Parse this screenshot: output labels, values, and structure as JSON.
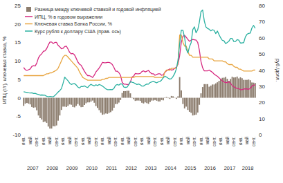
{
  "chart_data": {
    "type": "line",
    "y_label": "ИПЦ (г/г), ключевая ставка, %",
    "y2_label": "руб./долл.",
    "categories": [
      "янв.",
      null,
      null,
      null,
      "май",
      null,
      null,
      null,
      "сент.",
      null,
      null,
      null,
      "янв.",
      null,
      null,
      null,
      "май",
      null,
      null,
      null,
      "сент.",
      null,
      null,
      null,
      "янв.",
      null,
      null,
      null,
      "май",
      null,
      null,
      null,
      "сент.",
      null,
      null,
      null,
      "янв.",
      null,
      null,
      null,
      "май",
      null,
      null,
      null,
      "сент.",
      null,
      null,
      null,
      "янв.",
      null,
      null,
      null,
      "май",
      null,
      null,
      null,
      "сент.",
      null,
      null,
      null,
      "янв.",
      null,
      null,
      null,
      "май",
      null,
      null,
      null,
      "сент.",
      null,
      null,
      null,
      "янв.",
      null,
      null,
      null,
      "май",
      null,
      null,
      null,
      "сент.",
      null,
      null,
      null,
      "янв.",
      null,
      null,
      null,
      "май",
      null,
      null,
      null,
      "сент.",
      null,
      null,
      null,
      "янв.",
      null,
      null,
      null,
      "май",
      null,
      null,
      null,
      "сент.",
      null,
      null,
      null,
      "янв.",
      null,
      null,
      null,
      "май",
      null,
      null,
      null,
      "сент.",
      null,
      null,
      null,
      "янв.",
      null,
      null,
      null,
      "май",
      null,
      null,
      null,
      "сент.",
      null,
      null,
      null,
      "янв.",
      null,
      null,
      null,
      "май",
      null,
      null,
      null,
      "сент.",
      null
    ],
    "x_group_labels": [
      "2007",
      "2008",
      "2009",
      "2010",
      "2011",
      "2012",
      "2013",
      "2014",
      "2015",
      "2016",
      "2017",
      "2018"
    ],
    "ylim": [
      -10,
      25
    ],
    "yticks": [
      -10,
      -5,
      0,
      5,
      10,
      15,
      20,
      25
    ],
    "y2lim": [
      0,
      80
    ],
    "y2ticks": [
      0,
      10,
      20,
      30,
      40,
      50,
      60,
      70,
      80
    ],
    "grid": false,
    "legend": "upper left",
    "series": [
      {
        "name": "Разница между ключевой ставкой и годовой инфляцией",
        "type": "bar",
        "color": "#8c7d6e",
        "values": [
          -2.2,
          -1.6,
          -1.4,
          -1.6,
          -1.8,
          -2.5,
          -2.7,
          -2.6,
          -3.4,
          -4.8,
          -5.5,
          -5.9,
          -6.6,
          -6.45,
          -6.8,
          -7.8,
          -8.35,
          -8.35,
          -7.7,
          -7.75,
          -7.5,
          -6.2,
          -4.8,
          -3.3,
          -2.4,
          -2.4,
          -2.5,
          -2.2,
          -1.8,
          -1.9,
          -2.5,
          -2.6,
          -2.2,
          -1.7,
          -2.1,
          -2.55,
          -2.5,
          -1.95,
          -1.5,
          -1.25,
          -1.25,
          -1.05,
          -0.75,
          -1.35,
          -2.25,
          -2.75,
          -3.35,
          -4.05,
          -4.6,
          -4.5,
          -4.25,
          -4.35,
          -4.1,
          -3.9,
          -3.5,
          -2.7,
          -1.7,
          -1.7,
          -1.3,
          -0.6,
          1.3,
          1.8,
          1.8,
          1.9,
          1.9,
          1.2,
          -0.1,
          -0.4,
          -0.85,
          -0.75,
          -0.75,
          -0.85,
          -1.35,
          -1.55,
          -1.25,
          -1.45,
          -1.65,
          -1.15,
          -0.75,
          -0.75,
          -0.6,
          -0.8,
          -1.0,
          -1.0,
          -0.6,
          -0.7,
          0.1,
          0.2,
          -0.1,
          -0.3,
          0.5,
          0.4,
          0,
          -0.3,
          0.4,
          5.6,
          2.0,
          -1.7,
          -2.9,
          -2.4,
          -3.3,
          -3.8,
          -4.1,
          -4.8,
          -4.7,
          -4.6,
          -4.0,
          -1.9,
          1.2,
          2.9,
          3.7,
          3.7,
          3.7,
          3.0,
          3.3,
          3.6,
          3.6,
          3.9,
          4.2,
          4.6,
          5.0,
          5.4,
          5.45,
          5.65,
          5.15,
          4.6,
          5.1,
          5.7,
          5.5,
          5.55,
          5.75,
          5.25,
          5.55,
          5.3,
          4.85,
          4.85,
          4.85,
          4.95,
          4.75,
          4.15,
          4.1,
          4.0
        ]
      },
      {
        "name": "ИПЦ, % в годовом выражении",
        "type": "line",
        "color": "#d6287f",
        "values": [
          8.2,
          7.6,
          7.4,
          7.6,
          7.8,
          8.5,
          8.7,
          8.6,
          9.4,
          10.8,
          11.5,
          11.9,
          12.6,
          12.7,
          13.3,
          14.3,
          15.1,
          15.1,
          14.7,
          15.0,
          15.0,
          14.2,
          13.8,
          13.3,
          13.4,
          13.9,
          14.0,
          13.2,
          12.3,
          11.9,
          12.0,
          11.6,
          10.7,
          9.7,
          9.1,
          8.8,
          8.0,
          7.2,
          6.5,
          6.0,
          6.0,
          5.8,
          5.5,
          6.1,
          7.0,
          7.5,
          8.1,
          8.8,
          9.6,
          9.5,
          9.5,
          9.6,
          9.6,
          9.4,
          9.0,
          8.2,
          7.2,
          7.2,
          6.8,
          6.1,
          4.2,
          3.7,
          3.7,
          3.6,
          3.6,
          4.3,
          5.6,
          5.9,
          6.6,
          6.5,
          6.5,
          6.6,
          7.1,
          7.3,
          7.0,
          7.2,
          7.4,
          6.9,
          6.5,
          6.5,
          6.1,
          6.3,
          6.5,
          6.5,
          6.1,
          6.2,
          6.9,
          7.3,
          7.6,
          7.8,
          7.5,
          7.6,
          8.0,
          8.3,
          9.1,
          11.4,
          15.0,
          16.7,
          16.9,
          16.4,
          15.8,
          15.3,
          15.6,
          15.8,
          15.7,
          15.6,
          15.0,
          12.9,
          9.8,
          8.1,
          7.3,
          7.3,
          7.3,
          7.5,
          7.2,
          6.9,
          6.4,
          6.1,
          5.8,
          5.4,
          5.0,
          4.6,
          4.3,
          4.1,
          4.1,
          4.4,
          3.9,
          3.3,
          3.0,
          2.7,
          2.5,
          2.5,
          2.2,
          2.2,
          2.4,
          2.4,
          2.4,
          2.3,
          2.5,
          3.1,
          3.4,
          3.5
        ]
      },
      {
        "name": "Ключевая ставка Банка России, %",
        "type": "line",
        "color": "#e8a540",
        "values": [
          6.0,
          6.0,
          6.0,
          6.0,
          6.0,
          6.0,
          6.0,
          6.0,
          6.0,
          6.0,
          6.0,
          6.0,
          6.0,
          6.25,
          6.5,
          6.5,
          6.75,
          6.75,
          7.0,
          7.25,
          7.5,
          8.0,
          9.0,
          10.0,
          11.0,
          11.5,
          11.5,
          11.0,
          10.5,
          10.0,
          9.5,
          9.0,
          8.5,
          8.0,
          7.0,
          6.25,
          5.5,
          5.25,
          5.0,
          4.75,
          4.75,
          4.75,
          4.75,
          4.75,
          4.75,
          4.75,
          4.75,
          4.75,
          5.0,
          5.0,
          5.25,
          5.25,
          5.5,
          5.5,
          5.5,
          5.5,
          5.5,
          5.5,
          5.5,
          5.5,
          5.5,
          5.5,
          5.5,
          5.5,
          5.5,
          5.5,
          5.5,
          5.5,
          5.75,
          5.75,
          5.75,
          5.75,
          5.75,
          5.75,
          5.75,
          5.75,
          5.75,
          5.75,
          5.75,
          5.75,
          5.5,
          5.5,
          5.5,
          5.5,
          5.5,
          5.5,
          7.0,
          7.5,
          7.5,
          7.5,
          8.0,
          8.0,
          8.0,
          8.0,
          9.5,
          17.0,
          17.0,
          15.0,
          14.0,
          14.0,
          12.5,
          11.5,
          11.5,
          11.0,
          11.0,
          11.0,
          11.0,
          11.0,
          11.0,
          11.0,
          11.0,
          11.0,
          11.0,
          10.5,
          10.5,
          10.5,
          10.0,
          10.0,
          10.0,
          10.0,
          10.0,
          10.0,
          9.75,
          9.75,
          9.25,
          9.0,
          9.0,
          9.0,
          8.5,
          8.25,
          8.25,
          7.75,
          7.75,
          7.5,
          7.25,
          7.25,
          7.25,
          7.25,
          7.25,
          7.25,
          7.5,
          7.5
        ]
      },
      {
        "name": "Курс рубля к доллару США (прав. ось)",
        "type": "line",
        "axis": "y2",
        "color": "#2ab0a0",
        "values": [
          26.6,
          26.4,
          26.1,
          25.9,
          25.8,
          25.9,
          25.5,
          25.6,
          25.2,
          24.9,
          24.5,
          24.6,
          24.5,
          24.4,
          23.8,
          23.5,
          23.7,
          23.6,
          23.4,
          24.3,
          25.3,
          26.4,
          27.3,
          28.5,
          31.8,
          35.6,
          34.5,
          33.4,
          31.9,
          31.1,
          31.5,
          31.6,
          30.8,
          29.5,
          28.9,
          29.9,
          29.8,
          30.2,
          29.6,
          29.2,
          30.4,
          31.2,
          30.6,
          30.2,
          30.9,
          30.4,
          31.1,
          30.7,
          30.1,
          29.3,
          28.4,
          27.9,
          27.9,
          28.0,
          27.9,
          28.7,
          30.6,
          31.1,
          30.7,
          31.5,
          31.4,
          29.5,
          29.3,
          29.5,
          31.0,
          32.9,
          32.5,
          32.2,
          31.6,
          31.1,
          31.4,
          30.9,
          30.1,
          30.1,
          30.8,
          31.4,
          31.3,
          32.3,
          32.7,
          33.0,
          32.6,
          32.1,
          32.7,
          32.9,
          33.8,
          35.2,
          36.2,
          35.7,
          35.0,
          34.4,
          34.7,
          36.1,
          37.9,
          40.8,
          46.2,
          56.2,
          64.8,
          64.6,
          60.2,
          53.0,
          50.6,
          54.5,
          57.0,
          65.1,
          66.8,
          63.1,
          65.0,
          69.7,
          76.3,
          77.2,
          70.5,
          66.7,
          65.8,
          65.3,
          64.3,
          65.0,
          64.6,
          62.6,
          64.2,
          61.9,
          59.9,
          58.4,
          58.1,
          56.4,
          57.1,
          57.9,
          59.6,
          59.6,
          57.7,
          57.7,
          58.9,
          58.6,
          56.8,
          56.8,
          57.0,
          60.5,
          62.2,
          62.7,
          62.9,
          66.1,
          67.7,
          65.9
        ]
      }
    ]
  }
}
